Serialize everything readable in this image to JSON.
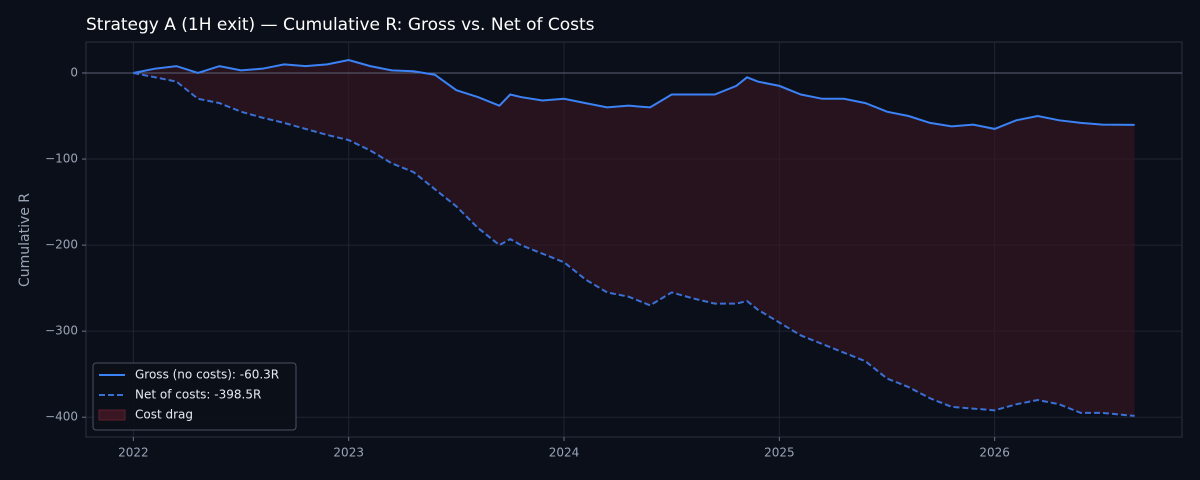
{
  "chart_data": {
    "type": "line",
    "title": "Strategy A (1H exit) — Cumulative R: Gross vs. Net of Costs",
    "y_label": "Cumulative R",
    "x": [
      2022.0,
      2022.1,
      2022.2,
      2022.3,
      2022.4,
      2022.5,
      2022.6,
      2022.7,
      2022.8,
      2022.9,
      2023.0,
      2023.1,
      2023.2,
      2023.3,
      2023.4,
      2023.5,
      2023.6,
      2023.7,
      2023.75,
      2023.8,
      2023.9,
      2024.0,
      2024.1,
      2024.2,
      2024.3,
      2024.4,
      2024.5,
      2024.6,
      2024.7,
      2024.8,
      2024.85,
      2024.9,
      2025.0,
      2025.1,
      2025.2,
      2025.3,
      2025.4,
      2025.5,
      2025.6,
      2025.7,
      2025.8,
      2025.9,
      2026.0,
      2026.1,
      2026.2,
      2026.3,
      2026.4,
      2026.5,
      2026.65
    ],
    "series": [
      {
        "name": "Gross (no costs): -60.3R",
        "color": "#3b82f6",
        "dashed": false,
        "values": [
          0,
          5,
          8,
          0,
          8,
          3,
          5,
          10,
          8,
          10,
          15,
          8,
          3,
          2,
          -2,
          -20,
          -28,
          -38,
          -25,
          -28,
          -32,
          -30,
          -35,
          -40,
          -38,
          -40,
          -25,
          -25,
          -25,
          -15,
          -5,
          -10,
          -15,
          -25,
          -30,
          -30,
          -35,
          -45,
          -50,
          -58,
          -62,
          -60,
          -65,
          -55,
          -50,
          -55,
          -58,
          -60,
          -60.3
        ]
      },
      {
        "name": "Net of costs: -398.5R",
        "color": "#3a6fd6",
        "dashed": true,
        "values": [
          0,
          -5,
          -10,
          -30,
          -35,
          -45,
          -52,
          -58,
          -65,
          -72,
          -78,
          -90,
          -105,
          -115,
          -135,
          -155,
          -180,
          -200,
          -193,
          -200,
          -210,
          -220,
          -240,
          -255,
          -260,
          -270,
          -255,
          -262,
          -268,
          -268,
          -265,
          -275,
          -290,
          -305,
          -315,
          -325,
          -335,
          -355,
          -365,
          -378,
          -388,
          -390,
          -392,
          -385,
          -380,
          -385,
          -395,
          -395,
          -398.5
        ]
      }
    ],
    "fill_between": {
      "name": "Cost drag",
      "color": "#3a1522"
    },
    "reference_line": 0,
    "xlim": [
      2021.78,
      2026.87
    ],
    "xticks": [
      2022,
      2023,
      2024,
      2025,
      2026
    ],
    "ylim": [
      -423,
      36
    ],
    "yticks": [
      0,
      {
        "value": -100,
        "label": "−100"
      },
      {
        "value": -200,
        "label": "−200"
      },
      {
        "value": -300,
        "label": "−300"
      },
      {
        "value": -400,
        "label": "−400"
      }
    ],
    "grid": true,
    "legend": "lower-left"
  }
}
